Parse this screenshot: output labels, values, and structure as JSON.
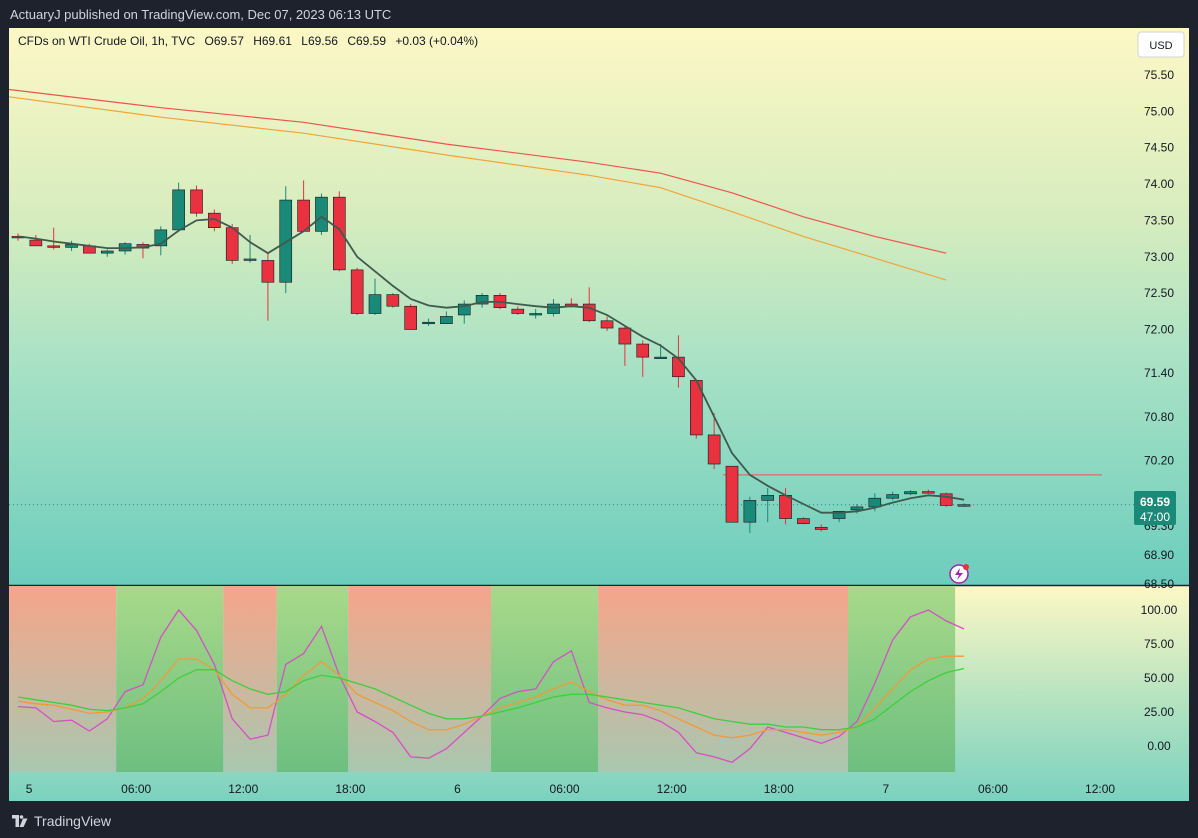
{
  "header": {
    "published": "ActuaryJ published on TradingView.com, Dec 07, 2023 06:13 UTC"
  },
  "legend": {
    "symbol": "CFDs on WTI Crude Oil, 1h, TVC",
    "open": "O69.57",
    "high": "H69.61",
    "low": "L69.56",
    "close": "C69.59",
    "change": "+0.03 (+0.04%)"
  },
  "currency_button": "USD",
  "price_label": {
    "price": "69.59",
    "countdown": "47:00"
  },
  "footer": {
    "brand": "TradingView"
  },
  "colors": {
    "up": "#1a8a78",
    "down": "#e8323f",
    "ma_short": "#3f5a4e",
    "ma_red": "#ef5350",
    "ma_orange": "#f2a33a",
    "osc_magenta": "#d64fc6",
    "osc_orange": "#f09a3a",
    "osc_green": "#3ecf3e",
    "zone_bull": "#9fd18a",
    "zone_bear": "#f4a994"
  },
  "chart_data": [
    {
      "type": "candlestick",
      "y_axis_ticks": [
        "75.50",
        "75.00",
        "74.50",
        "74.00",
        "73.50",
        "73.00",
        "72.50",
        "72.00",
        "71.40",
        "70.80",
        "70.20",
        "69.70",
        "69.30",
        "68.90",
        "68.50"
      ],
      "y_range": [
        68.5,
        75.8
      ],
      "x_axis_ticks": [
        "5",
        "06:00",
        "12:00",
        "18:00",
        "6",
        "06:00",
        "12:00",
        "18:00",
        "7",
        "06:00",
        "12:00"
      ],
      "candles": [
        {
          "o": 73.28,
          "h": 73.32,
          "l": 73.22,
          "c": 73.26
        },
        {
          "o": 73.23,
          "h": 73.3,
          "l": 73.15,
          "c": 73.15
        },
        {
          "o": 73.15,
          "h": 73.4,
          "l": 73.1,
          "c": 73.14
        },
        {
          "o": 73.13,
          "h": 73.22,
          "l": 73.08,
          "c": 73.17
        },
        {
          "o": 73.15,
          "h": 73.18,
          "l": 73.05,
          "c": 73.05
        },
        {
          "o": 73.05,
          "h": 73.1,
          "l": 73.0,
          "c": 73.08
        },
        {
          "o": 73.08,
          "h": 73.2,
          "l": 73.03,
          "c": 73.18
        },
        {
          "o": 73.17,
          "h": 73.2,
          "l": 72.98,
          "c": 73.12
        },
        {
          "o": 73.15,
          "h": 73.42,
          "l": 73.02,
          "c": 73.37
        },
        {
          "o": 73.37,
          "h": 74.02,
          "l": 73.37,
          "c": 73.92
        },
        {
          "o": 73.92,
          "h": 73.98,
          "l": 73.55,
          "c": 73.6
        },
        {
          "o": 73.6,
          "h": 73.65,
          "l": 73.35,
          "c": 73.4
        },
        {
          "o": 73.4,
          "h": 73.45,
          "l": 72.9,
          "c": 72.95
        },
        {
          "o": 72.95,
          "h": 73.3,
          "l": 72.92,
          "c": 72.97
        },
        {
          "o": 72.95,
          "h": 73.05,
          "l": 72.12,
          "c": 72.65
        },
        {
          "o": 72.65,
          "h": 73.97,
          "l": 72.5,
          "c": 73.78
        },
        {
          "o": 73.78,
          "h": 74.05,
          "l": 73.35,
          "c": 73.35
        },
        {
          "o": 73.35,
          "h": 73.87,
          "l": 73.3,
          "c": 73.82
        },
        {
          "o": 73.82,
          "h": 73.9,
          "l": 72.8,
          "c": 72.82
        },
        {
          "o": 72.82,
          "h": 72.85,
          "l": 72.2,
          "c": 72.22
        },
        {
          "o": 72.22,
          "h": 72.7,
          "l": 72.2,
          "c": 72.48
        },
        {
          "o": 72.48,
          "h": 72.5,
          "l": 72.3,
          "c": 72.32
        },
        {
          "o": 72.32,
          "h": 72.35,
          "l": 72.0,
          "c": 72.0
        },
        {
          "o": 72.1,
          "h": 72.15,
          "l": 72.05,
          "c": 72.1
        },
        {
          "o": 72.08,
          "h": 72.25,
          "l": 72.08,
          "c": 72.18
        },
        {
          "o": 72.2,
          "h": 72.4,
          "l": 72.08,
          "c": 72.35
        },
        {
          "o": 72.35,
          "h": 72.5,
          "l": 72.3,
          "c": 72.47
        },
        {
          "o": 72.47,
          "h": 72.5,
          "l": 72.28,
          "c": 72.3
        },
        {
          "o": 72.28,
          "h": 72.32,
          "l": 72.2,
          "c": 72.22
        },
        {
          "o": 72.22,
          "h": 72.28,
          "l": 72.15,
          "c": 72.22
        },
        {
          "o": 72.22,
          "h": 72.42,
          "l": 72.18,
          "c": 72.35
        },
        {
          "o": 72.35,
          "h": 72.43,
          "l": 72.3,
          "c": 72.32
        },
        {
          "o": 72.35,
          "h": 72.58,
          "l": 72.1,
          "c": 72.12
        },
        {
          "o": 72.12,
          "h": 72.18,
          "l": 71.98,
          "c": 72.02
        },
        {
          "o": 72.02,
          "h": 72.05,
          "l": 71.5,
          "c": 71.8
        },
        {
          "o": 71.8,
          "h": 71.85,
          "l": 71.35,
          "c": 71.62
        },
        {
          "o": 71.62,
          "h": 71.8,
          "l": 71.6,
          "c": 71.62
        },
        {
          "o": 71.62,
          "h": 71.92,
          "l": 71.2,
          "c": 71.35
        },
        {
          "o": 71.3,
          "h": 71.3,
          "l": 70.5,
          "c": 70.55
        },
        {
          "o": 70.55,
          "h": 70.85,
          "l": 70.08,
          "c": 70.15
        },
        {
          "o": 70.12,
          "h": 70.12,
          "l": 69.35,
          "c": 69.35
        },
        {
          "o": 69.35,
          "h": 69.7,
          "l": 69.2,
          "c": 69.65
        },
        {
          "o": 69.65,
          "h": 69.82,
          "l": 69.35,
          "c": 69.72
        },
        {
          "o": 69.72,
          "h": 69.82,
          "l": 69.32,
          "c": 69.4
        },
        {
          "o": 69.4,
          "h": 69.42,
          "l": 69.32,
          "c": 69.33
        },
        {
          "o": 69.28,
          "h": 69.32,
          "l": 69.22,
          "c": 69.25
        },
        {
          "o": 69.4,
          "h": 69.5,
          "l": 69.35,
          "c": 69.5
        },
        {
          "o": 69.52,
          "h": 69.6,
          "l": 69.47,
          "c": 69.56
        },
        {
          "o": 69.56,
          "h": 69.75,
          "l": 69.5,
          "c": 69.68
        },
        {
          "o": 69.68,
          "h": 69.77,
          "l": 69.65,
          "c": 69.73
        },
        {
          "o": 69.74,
          "h": 69.79,
          "l": 69.72,
          "c": 69.77
        },
        {
          "o": 69.77,
          "h": 69.8,
          "l": 69.74,
          "c": 69.76
        },
        {
          "o": 69.74,
          "h": 69.76,
          "l": 69.56,
          "c": 69.58
        },
        {
          "o": 69.57,
          "h": 69.61,
          "l": 69.56,
          "c": 69.59
        }
      ],
      "ma_short": [
        73.28,
        73.25,
        73.21,
        73.18,
        73.15,
        73.12,
        73.12,
        73.13,
        73.18,
        73.36,
        73.5,
        73.52,
        73.4,
        73.2,
        73.05,
        73.2,
        73.35,
        73.55,
        73.38,
        73.0,
        72.8,
        72.6,
        72.42,
        72.33,
        72.3,
        72.32,
        72.38,
        72.38,
        72.35,
        72.32,
        72.3,
        72.32,
        72.3,
        72.2,
        72.05,
        71.9,
        71.78,
        71.6,
        71.3,
        70.8,
        70.3,
        70.0,
        69.85,
        69.72,
        69.6,
        69.48,
        69.48,
        69.5,
        69.55,
        69.62,
        69.68,
        69.72,
        69.7,
        69.66
      ],
      "horizontal_level": 70.0,
      "long_ma_red": [
        {
          "i": -0.5,
          "v": 75.3
        },
        {
          "i": 8,
          "v": 75.05
        },
        {
          "i": 16,
          "v": 74.85
        },
        {
          "i": 24,
          "v": 74.55
        },
        {
          "i": 32,
          "v": 74.3
        },
        {
          "i": 36,
          "v": 74.15
        },
        {
          "i": 40,
          "v": 73.88
        },
        {
          "i": 44,
          "v": 73.55
        },
        {
          "i": 48,
          "v": 73.28
        },
        {
          "i": 52,
          "v": 73.05
        }
      ],
      "long_ma_orange": [
        {
          "i": -0.5,
          "v": 75.2
        },
        {
          "i": 8,
          "v": 74.92
        },
        {
          "i": 16,
          "v": 74.7
        },
        {
          "i": 24,
          "v": 74.4
        },
        {
          "i": 32,
          "v": 74.12
        },
        {
          "i": 36,
          "v": 73.95
        },
        {
          "i": 40,
          "v": 73.62
        },
        {
          "i": 44,
          "v": 73.28
        },
        {
          "i": 48,
          "v": 72.98
        },
        {
          "i": 52,
          "v": 72.68
        }
      ]
    },
    {
      "type": "line",
      "y_axis_ticks": [
        "100.00",
        "75.00",
        "50.00",
        "25.00",
        "0.00"
      ],
      "y_range": [
        -20,
        105
      ],
      "zones": [
        {
          "start": -0.5,
          "end": 5.5,
          "trend": "bear"
        },
        {
          "start": 5.5,
          "end": 11.5,
          "trend": "bull"
        },
        {
          "start": 11.5,
          "end": 14.5,
          "trend": "bear"
        },
        {
          "start": 14.5,
          "end": 18.5,
          "trend": "bull"
        },
        {
          "start": 18.5,
          "end": 26.5,
          "trend": "bear"
        },
        {
          "start": 26.5,
          "end": 32.5,
          "trend": "bull"
        },
        {
          "start": 32.5,
          "end": 46.5,
          "trend": "bear"
        },
        {
          "start": 46.5,
          "end": 52.5,
          "trend": "bull"
        }
      ],
      "series": [
        {
          "values": [
            29,
            28,
            18,
            19,
            11,
            20,
            40,
            45,
            80,
            100,
            85,
            60,
            20,
            5,
            8,
            60,
            68,
            88,
            52,
            25,
            18,
            10,
            -8,
            -9,
            -2,
            10,
            22,
            35,
            40,
            42,
            62,
            70,
            32,
            28,
            25,
            23,
            18,
            10,
            -5,
            -8,
            -12,
            -2,
            14,
            10,
            6,
            2,
            7,
            18,
            46,
            78,
            95,
            100,
            92,
            86
          ]
        },
        {
          "values": [
            33,
            31,
            30,
            27,
            24,
            25,
            28,
            35,
            48,
            64,
            64,
            56,
            38,
            28,
            28,
            38,
            52,
            62,
            52,
            38,
            32,
            26,
            18,
            12,
            12,
            16,
            22,
            28,
            32,
            36,
            42,
            47,
            40,
            34,
            30,
            30,
            26,
            20,
            14,
            8,
            6,
            8,
            12,
            12,
            10,
            8,
            10,
            14,
            28,
            42,
            56,
            64,
            66,
            66
          ]
        },
        {
          "values": [
            36,
            34,
            32,
            30,
            27,
            26,
            28,
            31,
            40,
            50,
            56,
            56,
            48,
            42,
            38,
            40,
            48,
            52,
            50,
            46,
            42,
            36,
            30,
            24,
            20,
            20,
            22,
            25,
            28,
            32,
            36,
            38,
            38,
            36,
            34,
            32,
            30,
            28,
            24,
            20,
            18,
            16,
            16,
            14,
            14,
            12,
            12,
            14,
            20,
            30,
            40,
            48,
            54,
            57
          ]
        }
      ]
    }
  ]
}
